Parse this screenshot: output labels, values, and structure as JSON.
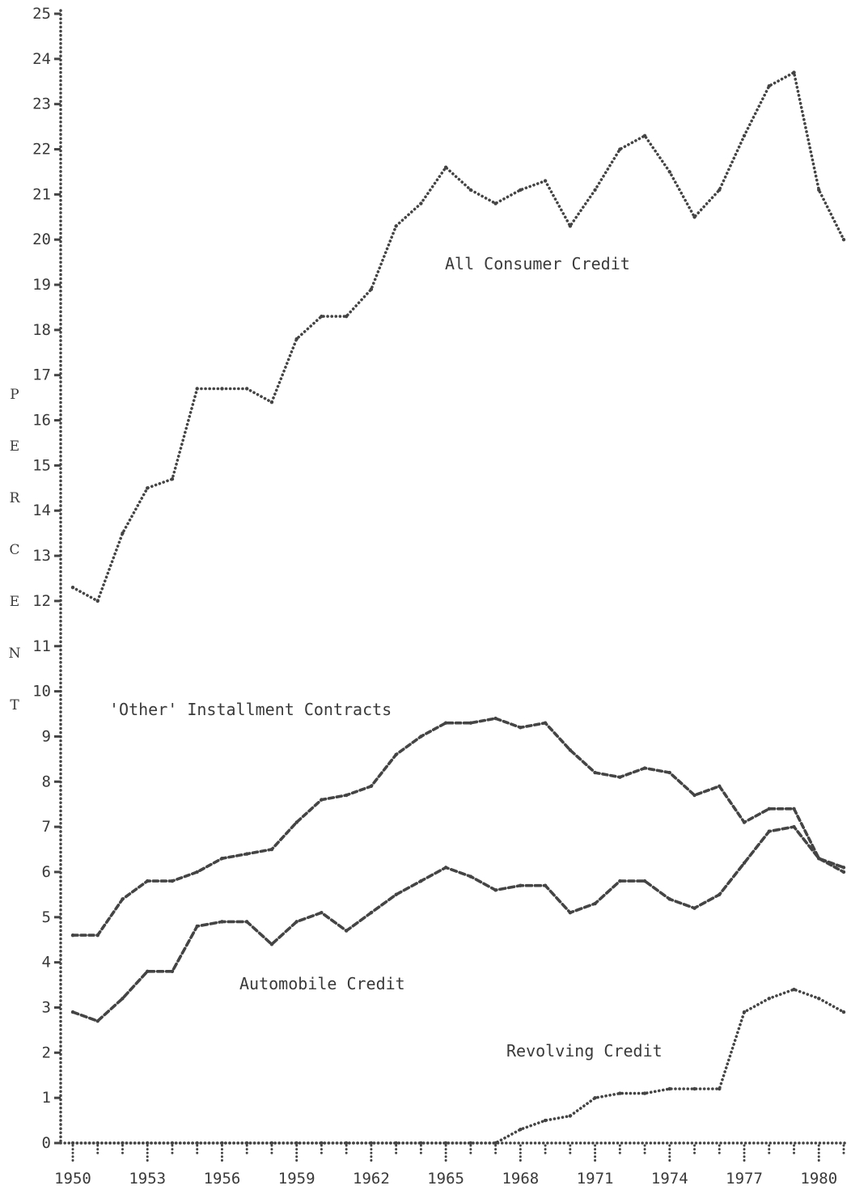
{
  "chart_data": {
    "type": "line",
    "title": "",
    "xlabel": "",
    "ylabel": "PERCENT",
    "xlim": [
      1950,
      1981
    ],
    "ylim": [
      0,
      25
    ],
    "grid": false,
    "legend": "none",
    "x_ticks": [
      "1950",
      "1953",
      "1956",
      "1959",
      "1962",
      "1965",
      "1968",
      "1971",
      "1974",
      "1977",
      "1980"
    ],
    "y_ticks": [
      "0",
      "1",
      "2",
      "3",
      "4",
      "5",
      "6",
      "7",
      "8",
      "9",
      "10",
      "11",
      "12",
      "13",
      "14",
      "15",
      "16",
      "17",
      "18",
      "19",
      "20",
      "21",
      "22",
      "23",
      "24",
      "25"
    ],
    "line_color": "#444444",
    "series": [
      {
        "name": "All Consumer Credit",
        "x": [
          1950,
          1951,
          1952,
          1953,
          1954,
          1955,
          1956,
          1957,
          1958,
          1959,
          1960,
          1961,
          1962,
          1963,
          1964,
          1965,
          1966,
          1967,
          1968,
          1969,
          1970,
          1971,
          1972,
          1973,
          1974,
          1975,
          1976,
          1977,
          1978,
          1979,
          1980,
          1981
        ],
        "values": [
          12.3,
          12.0,
          13.5,
          14.5,
          14.7,
          16.7,
          16.7,
          16.7,
          16.4,
          17.8,
          18.3,
          18.3,
          18.9,
          20.3,
          20.8,
          21.6,
          21.1,
          20.8,
          21.1,
          21.3,
          20.3,
          21.1,
          22.0,
          22.3,
          21.5,
          20.5,
          21.1,
          22.3,
          23.4,
          23.7,
          21.1,
          20.0
        ],
        "label": "All Consumer Credit"
      },
      {
        "name": "'Other' Installment Contracts",
        "x": [
          1950,
          1951,
          1952,
          1953,
          1954,
          1955,
          1956,
          1957,
          1958,
          1959,
          1960,
          1961,
          1962,
          1963,
          1964,
          1965,
          1966,
          1967,
          1968,
          1969,
          1970,
          1971,
          1972,
          1973,
          1974,
          1975,
          1976,
          1977,
          1978,
          1979,
          1980,
          1981
        ],
        "values": [
          4.6,
          4.6,
          5.4,
          5.8,
          5.8,
          6.0,
          6.3,
          6.4,
          6.5,
          7.1,
          7.6,
          7.7,
          7.9,
          8.6,
          9.0,
          9.3,
          9.3,
          9.4,
          9.2,
          9.3,
          8.7,
          8.2,
          8.1,
          8.3,
          8.2,
          7.7,
          7.9,
          7.1,
          7.4,
          7.4,
          6.3,
          6.0
        ],
        "label": "'Other' Installment Contracts"
      },
      {
        "name": "Automobile Credit",
        "x": [
          1950,
          1951,
          1952,
          1953,
          1954,
          1955,
          1956,
          1957,
          1958,
          1959,
          1960,
          1961,
          1962,
          1963,
          1964,
          1965,
          1966,
          1967,
          1968,
          1969,
          1970,
          1971,
          1972,
          1973,
          1974,
          1975,
          1976,
          1977,
          1978,
          1979,
          1980,
          1981
        ],
        "values": [
          2.9,
          2.7,
          3.2,
          3.8,
          3.8,
          4.8,
          4.9,
          4.9,
          4.4,
          4.9,
          5.1,
          4.7,
          5.1,
          5.5,
          5.8,
          6.1,
          5.9,
          5.6,
          5.7,
          5.7,
          5.1,
          5.3,
          5.8,
          5.8,
          5.4,
          5.2,
          5.5,
          6.2,
          6.9,
          7.0,
          6.3,
          6.1
        ],
        "label": "Automobile Credit"
      },
      {
        "name": "Revolving Credit",
        "x": [
          1950,
          1951,
          1952,
          1953,
          1954,
          1955,
          1956,
          1957,
          1958,
          1959,
          1960,
          1961,
          1962,
          1963,
          1964,
          1965,
          1966,
          1967,
          1968,
          1969,
          1970,
          1971,
          1972,
          1973,
          1974,
          1975,
          1976,
          1977,
          1978,
          1979,
          1980,
          1981
        ],
        "values": [
          0,
          0,
          0,
          0,
          0,
          0,
          0,
          0,
          0,
          0,
          0,
          0,
          0,
          0,
          0,
          0,
          0,
          0,
          0.3,
          0.5,
          0.6,
          1.0,
          1.1,
          1.1,
          1.2,
          1.2,
          1.2,
          2.9,
          3.2,
          3.4,
          3.2,
          2.9
        ],
        "label": "Revolving Credit"
      }
    ]
  }
}
